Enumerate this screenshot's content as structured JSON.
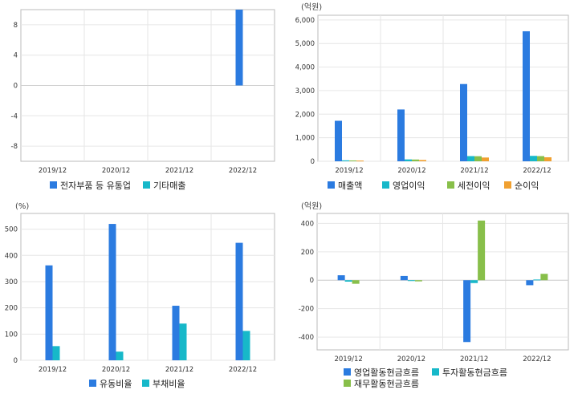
{
  "colors": {
    "blue": "#2b7be0",
    "cyan": "#17b8c9",
    "green": "#88bf4a",
    "orange": "#f0a030",
    "grid": "#e6e6e6",
    "frame": "#bbbbbb"
  },
  "chart_data": [
    {
      "id": "c1",
      "type": "bar",
      "unit": "",
      "categories": [
        "2019/12",
        "2020/12",
        "2021/12",
        "2022/12"
      ],
      "ylim": [
        -10,
        10
      ],
      "yticks": [
        8,
        4,
        0,
        -4,
        -8
      ],
      "series": [
        {
          "name": "전자부품 등 유통업",
          "color": "#2b7be0",
          "values": [
            null,
            null,
            null,
            10
          ]
        },
        {
          "name": "기타매출",
          "color": "#17b8c9",
          "values": [
            null,
            null,
            null,
            null
          ]
        }
      ]
    },
    {
      "id": "c2",
      "type": "bar",
      "unit": "(억원)",
      "categories": [
        "2019/12",
        "2020/12",
        "2021/12",
        "2022/12"
      ],
      "ylim": [
        0,
        6200
      ],
      "yticks": [
        0,
        1000,
        2000,
        3000,
        4000,
        5000,
        6000
      ],
      "yticklabels": [
        "0",
        "1,000",
        "2,000",
        "3,000",
        "4,000",
        "5,000",
        "6,000"
      ],
      "series": [
        {
          "name": "매출액",
          "color": "#2b7be0",
          "values": [
            1720,
            2200,
            3280,
            5520
          ]
        },
        {
          "name": "영업이익",
          "color": "#17b8c9",
          "values": [
            40,
            80,
            220,
            230
          ]
        },
        {
          "name": "세전이익",
          "color": "#88bf4a",
          "values": [
            35,
            75,
            215,
            220
          ]
        },
        {
          "name": "순이익",
          "color": "#f0a030",
          "values": [
            30,
            55,
            160,
            170
          ]
        }
      ]
    },
    {
      "id": "c3",
      "type": "bar",
      "unit": "(%)",
      "categories": [
        "2019/12",
        "2020/12",
        "2021/12",
        "2022/12"
      ],
      "ylim": [
        0,
        560
      ],
      "yticks": [
        0,
        100,
        200,
        300,
        400,
        500
      ],
      "series": [
        {
          "name": "유동비율",
          "color": "#2b7be0",
          "values": [
            362,
            520,
            208,
            448
          ]
        },
        {
          "name": "부채비율",
          "color": "#17b8c9",
          "values": [
            54,
            33,
            140,
            112
          ]
        }
      ]
    },
    {
      "id": "c4",
      "type": "bar",
      "unit": "(억원)",
      "categories": [
        "2019/12",
        "2020/12",
        "2021/12",
        "2022/12"
      ],
      "ylim": [
        -490,
        470
      ],
      "yticks": [
        400,
        200,
        0,
        -200,
        -400
      ],
      "series": [
        {
          "name": "영업활동현금흐름",
          "color": "#2b7be0",
          "values": [
            35,
            30,
            -435,
            -35
          ]
        },
        {
          "name": "투자활동현금흐름",
          "color": "#17b8c9",
          "values": [
            -10,
            -5,
            -20,
            5
          ]
        },
        {
          "name": "재무활동현금흐름",
          "color": "#88bf4a",
          "values": [
            -25,
            -8,
            420,
            45
          ]
        }
      ]
    }
  ]
}
